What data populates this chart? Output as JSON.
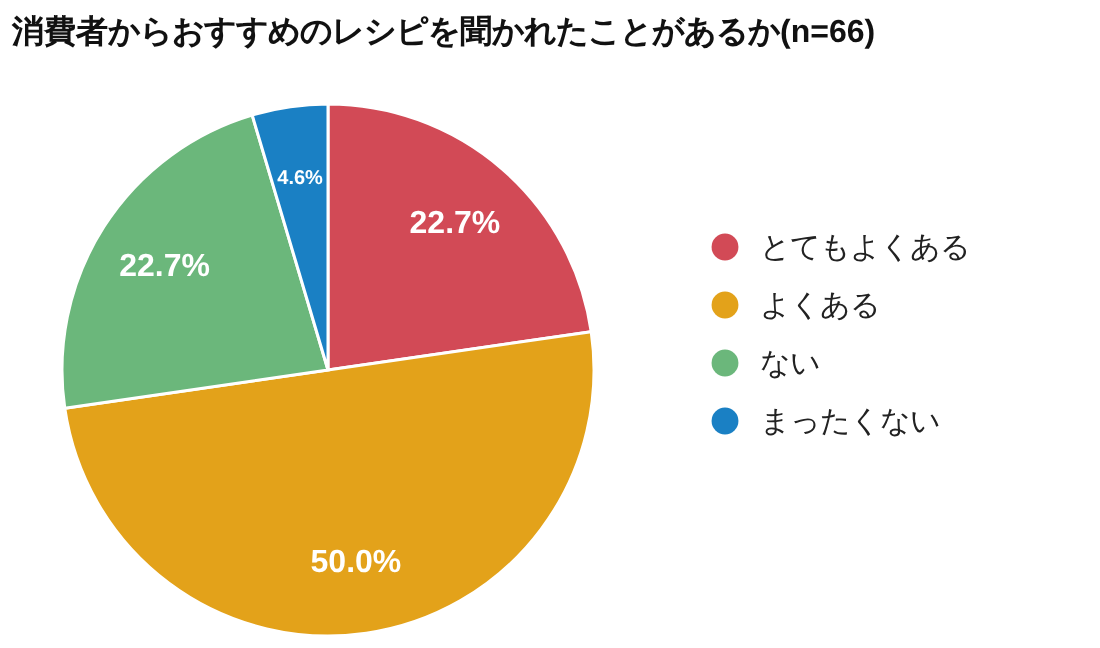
{
  "chart_data": {
    "type": "pie",
    "title": "消費者からおすすめのレシピを聞かれたことがあるか(n=66)",
    "categories": [
      "とてもよくある",
      "よくある",
      "ない",
      "まったくない"
    ],
    "values": [
      22.7,
      50.0,
      22.7,
      4.6
    ],
    "colors": [
      "#d24a56",
      "#e3a21a",
      "#6bb77b",
      "#1a80c4"
    ],
    "value_labels": [
      "22.7%",
      "50.0%",
      "22.7%",
      "4.6%"
    ],
    "legend": "right"
  }
}
